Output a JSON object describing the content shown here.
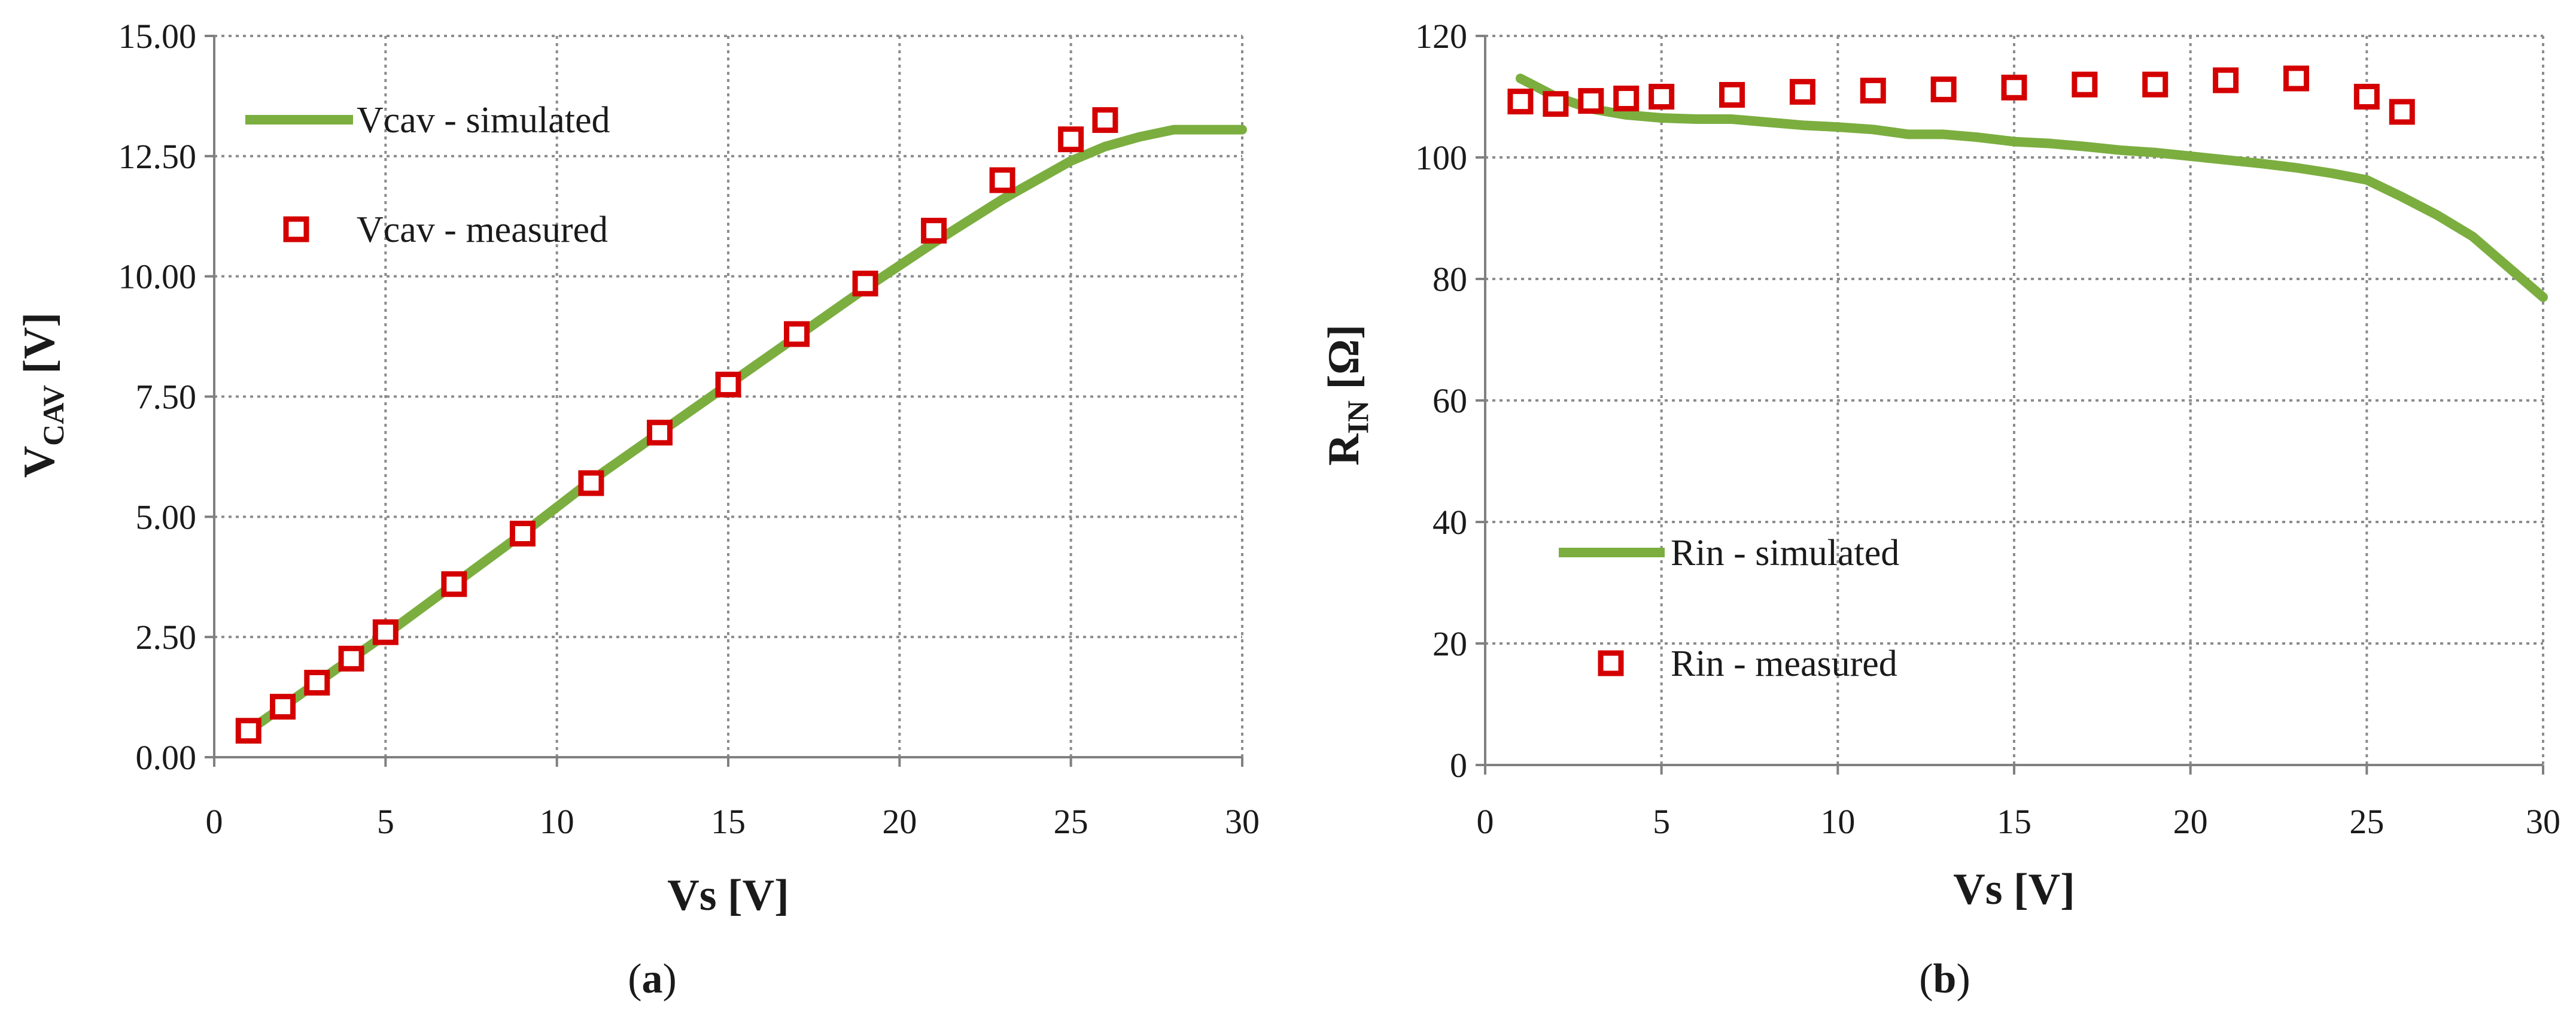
{
  "colors": {
    "simulated": "#7bae3f",
    "measured": "#d40000",
    "grid": "#8c8c8c",
    "axis": "#808080"
  },
  "chart_data": [
    {
      "type": "line",
      "panel_label_open": "(",
      "panel_label_letter": "a",
      "panel_label_close": ")",
      "xlabel": "Vs [V]",
      "ylabel_main": "V",
      "ylabel_sub": "CAV",
      "ylabel_unit": " [V]",
      "xlim": [
        0,
        30
      ],
      "ylim": [
        0,
        15
      ],
      "xticks": [
        0,
        5,
        10,
        15,
        20,
        25,
        30
      ],
      "xtick_labels": [
        "0",
        "5",
        "10",
        "15",
        "20",
        "25",
        "30"
      ],
      "yticks": [
        0,
        2.5,
        5,
        7.5,
        10,
        12.5,
        15
      ],
      "ytick_labels": [
        "0.00",
        "2.50",
        "5.00",
        "7.50",
        "10.00",
        "12.50",
        "15.00"
      ],
      "grid": true,
      "legend_position": "top-left",
      "series": [
        {
          "name": "Vcav - simulated",
          "style": "line",
          "x": [
            1,
            3,
            5,
            7,
            9,
            11,
            13,
            15,
            17,
            19,
            21,
            23,
            25,
            26,
            27,
            28,
            29,
            30
          ],
          "y": [
            0.55,
            1.55,
            2.55,
            3.6,
            4.65,
            5.75,
            6.75,
            7.75,
            8.75,
            9.75,
            10.7,
            11.6,
            12.4,
            12.7,
            12.9,
            13.05,
            13.05,
            13.05
          ]
        },
        {
          "name": "Vcav - measured",
          "style": "marker",
          "x": [
            1,
            2,
            3,
            4,
            5,
            7,
            9,
            11,
            13,
            15,
            17,
            19,
            21,
            23,
            25,
            26
          ],
          "y": [
            0.55,
            1.05,
            1.55,
            2.05,
            2.6,
            3.6,
            4.65,
            5.7,
            6.75,
            7.75,
            8.8,
            9.85,
            10.95,
            12.0,
            12.85,
            13.25
          ]
        }
      ]
    },
    {
      "type": "line",
      "panel_label_open": "(",
      "panel_label_letter": "b",
      "panel_label_close": ")",
      "xlabel": "Vs [V]",
      "ylabel_main": "R",
      "ylabel_sub": "IN",
      "ylabel_unit": " [Ω]",
      "xlim": [
        0,
        30
      ],
      "ylim": [
        0,
        120
      ],
      "xticks": [
        0,
        5,
        10,
        15,
        20,
        25,
        30
      ],
      "xtick_labels": [
        "0",
        "5",
        "10",
        "15",
        "20",
        "25",
        "30"
      ],
      "yticks": [
        0,
        20,
        40,
        60,
        80,
        100,
        120
      ],
      "ytick_labels": [
        "0",
        "20",
        "40",
        "60",
        "80",
        "100",
        "120"
      ],
      "grid": true,
      "legend_position": "bottom-left",
      "series": [
        {
          "name": "Rin - simulated",
          "style": "line",
          "x": [
            1,
            2,
            3,
            4,
            5,
            6,
            7,
            8,
            9,
            10,
            11,
            12,
            13,
            14,
            15,
            16,
            17,
            18,
            19,
            20,
            21,
            22,
            23,
            24,
            25,
            26,
            27,
            28,
            29,
            30
          ],
          "y": [
            113,
            110,
            108,
            107,
            106.5,
            106.3,
            106.3,
            105.8,
            105.3,
            105,
            104.6,
            103.8,
            103.8,
            103.3,
            102.6,
            102.3,
            101.8,
            101.2,
            100.8,
            100.2,
            99.6,
            99,
            98.3,
            97.4,
            96.3,
            93.5,
            90.5,
            87,
            82,
            77
          ]
        },
        {
          "name": "Rin - measured",
          "style": "marker",
          "x": [
            1,
            2,
            3,
            4,
            5,
            7,
            9,
            11,
            13,
            15,
            17,
            19,
            21,
            23,
            25,
            26
          ],
          "y": [
            109.2,
            108.8,
            109.3,
            109.7,
            110,
            110.3,
            110.8,
            111,
            111.2,
            111.5,
            112,
            112,
            112.7,
            113,
            110,
            107.5
          ]
        }
      ]
    }
  ]
}
